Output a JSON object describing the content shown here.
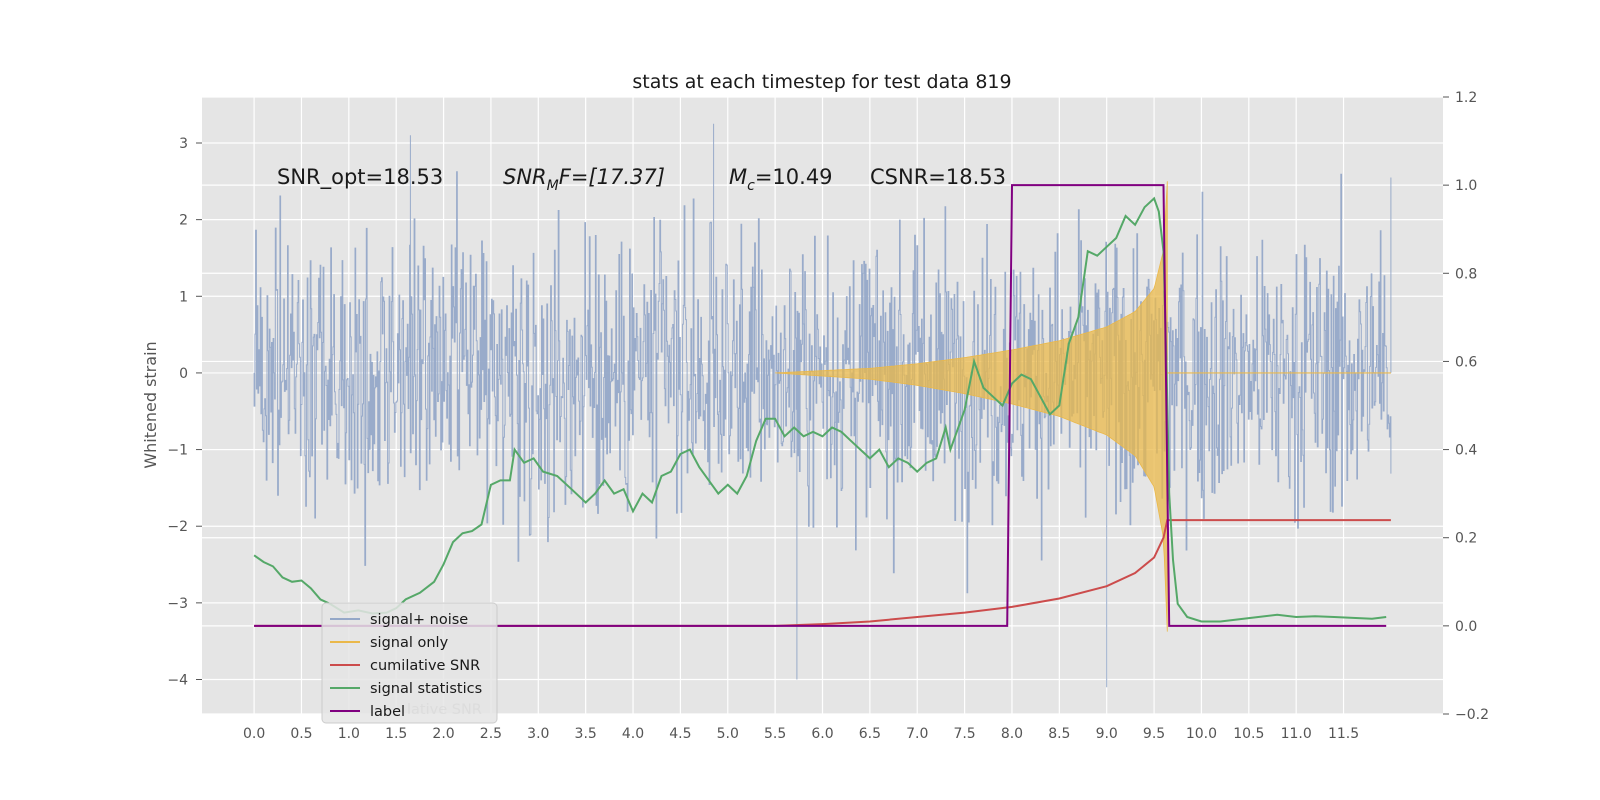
{
  "chart_data": {
    "type": "line",
    "title": "stats at each timestep for test data 819",
    "ylabel": "Whitened strain",
    "xlabel": "",
    "xlim": [
      -0.55,
      12.55
    ],
    "ylim": [
      -4.45,
      3.6
    ],
    "y2lim": [
      -0.2,
      1.2
    ],
    "x_ticks": [
      "0.0",
      "0.5",
      "1.0",
      "1.5",
      "2.0",
      "2.5",
      "3.0",
      "3.5",
      "4.0",
      "4.5",
      "5.0",
      "5.5",
      "6.0",
      "6.5",
      "7.0",
      "7.5",
      "8.0",
      "8.5",
      "9.0",
      "9.5",
      "10.0",
      "10.5",
      "11.0",
      "11.5"
    ],
    "y_ticks": [
      {
        "value": 3,
        "label": "3"
      },
      {
        "value": 2,
        "label": "2"
      },
      {
        "value": 1,
        "label": "1"
      },
      {
        "value": 0,
        "label": "0"
      },
      {
        "value": -1,
        "label": "−1"
      },
      {
        "value": -2,
        "label": "−2"
      },
      {
        "value": -3,
        "label": "−3"
      },
      {
        "value": -4,
        "label": "−4"
      }
    ],
    "y2_ticks": [
      {
        "value": 1.2,
        "label": "1.2"
      },
      {
        "value": 1.0,
        "label": "1.0"
      },
      {
        "value": 0.8,
        "label": "0.8"
      },
      {
        "value": 0.6,
        "label": "0.6"
      },
      {
        "value": 0.4,
        "label": "0.4"
      },
      {
        "value": 0.2,
        "label": "0.2"
      },
      {
        "value": 0.0,
        "label": "0.0"
      },
      {
        "value": -0.2,
        "label": "−0.2"
      }
    ],
    "annotations": {
      "snr_opt": "SNR_opt=18.53",
      "snr_mf_main": "SNR",
      "snr_mf_sub": "M",
      "snr_mf_rest": "F=[17.37]",
      "mc_main": "M",
      "mc_sub": "c",
      "mc_rest": "=10.49",
      "csnr": "CSNR=18.53"
    },
    "grid": true,
    "legend_position": "lower-left",
    "series": [
      {
        "name": "signal+ noise",
        "color": "#95a8c8",
        "axis": "left",
        "kind": "noise",
        "x_range": [
          0.0,
          12.0
        ],
        "amplitude_std": 0.9,
        "extremes": [
          [
            5.73,
            -4.0
          ],
          [
            9.0,
            -4.1
          ],
          [
            1.65,
            3.1
          ],
          [
            4.85,
            3.25
          ],
          [
            12.0,
            2.55
          ]
        ]
      },
      {
        "name": "signal only",
        "color": "#eab84a",
        "axis": "left",
        "kind": "chirp",
        "envelope": [
          [
            5.5,
            0.0
          ],
          [
            6.5,
            0.06
          ],
          [
            7.0,
            0.12
          ],
          [
            7.5,
            0.2
          ],
          [
            8.0,
            0.3
          ],
          [
            8.5,
            0.42
          ],
          [
            9.0,
            0.6
          ],
          [
            9.3,
            0.8
          ],
          [
            9.5,
            1.1
          ],
          [
            9.6,
            1.6
          ],
          [
            9.64,
            2.5
          ]
        ],
        "x_range": [
          5.5,
          12.0
        ]
      },
      {
        "name": "cumilative SNR",
        "color": "#cc4c4c",
        "axis": "right",
        "points": [
          [
            0.0,
            0.0
          ],
          [
            5.5,
            0.0
          ],
          [
            6.0,
            0.004
          ],
          [
            6.5,
            0.01
          ],
          [
            7.0,
            0.02
          ],
          [
            7.5,
            0.03
          ],
          [
            8.0,
            0.043
          ],
          [
            8.5,
            0.062
          ],
          [
            9.0,
            0.09
          ],
          [
            9.3,
            0.12
          ],
          [
            9.5,
            0.155
          ],
          [
            9.6,
            0.2
          ],
          [
            9.64,
            0.24
          ],
          [
            9.66,
            0.24
          ],
          [
            12.0,
            0.24
          ]
        ]
      },
      {
        "name": "signal statistics",
        "color": "#55a868",
        "axis": "right",
        "points": [
          [
            0.0,
            0.16
          ],
          [
            0.1,
            0.145
          ],
          [
            0.2,
            0.135
          ],
          [
            0.3,
            0.11
          ],
          [
            0.4,
            0.1
          ],
          [
            0.5,
            0.103
          ],
          [
            0.6,
            0.085
          ],
          [
            0.7,
            0.06
          ],
          [
            0.8,
            0.05
          ],
          [
            0.95,
            0.03
          ],
          [
            1.1,
            0.035
          ],
          [
            1.25,
            0.028
          ],
          [
            1.4,
            0.03
          ],
          [
            1.5,
            0.04
          ],
          [
            1.6,
            0.06
          ],
          [
            1.75,
            0.075
          ],
          [
            1.9,
            0.1
          ],
          [
            2.0,
            0.14
          ],
          [
            2.1,
            0.19
          ],
          [
            2.2,
            0.21
          ],
          [
            2.3,
            0.215
          ],
          [
            2.4,
            0.23
          ],
          [
            2.5,
            0.32
          ],
          [
            2.6,
            0.33
          ],
          [
            2.7,
            0.33
          ],
          [
            2.75,
            0.4
          ],
          [
            2.85,
            0.37
          ],
          [
            2.95,
            0.38
          ],
          [
            3.05,
            0.35
          ],
          [
            3.2,
            0.34
          ],
          [
            3.35,
            0.31
          ],
          [
            3.5,
            0.28
          ],
          [
            3.6,
            0.3
          ],
          [
            3.7,
            0.33
          ],
          [
            3.8,
            0.3
          ],
          [
            3.9,
            0.31
          ],
          [
            4.0,
            0.26
          ],
          [
            4.1,
            0.3
          ],
          [
            4.2,
            0.28
          ],
          [
            4.3,
            0.34
          ],
          [
            4.4,
            0.35
          ],
          [
            4.5,
            0.39
          ],
          [
            4.6,
            0.4
          ],
          [
            4.7,
            0.36
          ],
          [
            4.8,
            0.33
          ],
          [
            4.9,
            0.3
          ],
          [
            5.0,
            0.32
          ],
          [
            5.1,
            0.3
          ],
          [
            5.2,
            0.34
          ],
          [
            5.3,
            0.42
          ],
          [
            5.4,
            0.47
          ],
          [
            5.5,
            0.47
          ],
          [
            5.6,
            0.43
          ],
          [
            5.7,
            0.45
          ],
          [
            5.8,
            0.43
          ],
          [
            5.9,
            0.44
          ],
          [
            6.0,
            0.43
          ],
          [
            6.1,
            0.45
          ],
          [
            6.2,
            0.44
          ],
          [
            6.3,
            0.42
          ],
          [
            6.4,
            0.4
          ],
          [
            6.5,
            0.38
          ],
          [
            6.6,
            0.4
          ],
          [
            6.7,
            0.36
          ],
          [
            6.8,
            0.38
          ],
          [
            6.9,
            0.37
          ],
          [
            7.0,
            0.35
          ],
          [
            7.1,
            0.37
          ],
          [
            7.2,
            0.38
          ],
          [
            7.3,
            0.45
          ],
          [
            7.35,
            0.4
          ],
          [
            7.5,
            0.49
          ],
          [
            7.6,
            0.6
          ],
          [
            7.7,
            0.54
          ],
          [
            7.8,
            0.52
          ],
          [
            7.9,
            0.5
          ],
          [
            8.0,
            0.55
          ],
          [
            8.1,
            0.57
          ],
          [
            8.2,
            0.56
          ],
          [
            8.3,
            0.52
          ],
          [
            8.4,
            0.48
          ],
          [
            8.5,
            0.5
          ],
          [
            8.6,
            0.64
          ],
          [
            8.7,
            0.7
          ],
          [
            8.8,
            0.85
          ],
          [
            8.9,
            0.84
          ],
          [
            9.0,
            0.86
          ],
          [
            9.1,
            0.88
          ],
          [
            9.2,
            0.93
          ],
          [
            9.3,
            0.91
          ],
          [
            9.4,
            0.95
          ],
          [
            9.5,
            0.97
          ],
          [
            9.55,
            0.94
          ],
          [
            9.6,
            0.85
          ],
          [
            9.63,
            0.6
          ],
          [
            9.66,
            0.3
          ],
          [
            9.7,
            0.15
          ],
          [
            9.75,
            0.05
          ],
          [
            9.85,
            0.02
          ],
          [
            10.0,
            0.01
          ],
          [
            10.2,
            0.01
          ],
          [
            10.4,
            0.015
          ],
          [
            10.6,
            0.02
          ],
          [
            10.8,
            0.025
          ],
          [
            11.0,
            0.02
          ],
          [
            11.2,
            0.022
          ],
          [
            11.4,
            0.02
          ],
          [
            11.6,
            0.018
          ],
          [
            11.8,
            0.016
          ],
          [
            11.95,
            0.02
          ]
        ]
      },
      {
        "name": "label",
        "color": "#800080",
        "axis": "right",
        "points": [
          [
            0.0,
            0.0
          ],
          [
            7.95,
            0.0
          ],
          [
            8.0,
            1.0
          ],
          [
            9.6,
            1.0
          ],
          [
            9.66,
            0.0
          ],
          [
            11.95,
            0.0
          ]
        ]
      }
    ],
    "legend_overlap_ghost": "lative SNR",
    "colors": {
      "axes_bg": "#e5e5e5",
      "grid": "#ffffff",
      "noise": "#95a8c8",
      "signal": "#eab84a",
      "cum_snr": "#cc4c4c",
      "stats": "#55a868",
      "label": "#800080"
    }
  }
}
